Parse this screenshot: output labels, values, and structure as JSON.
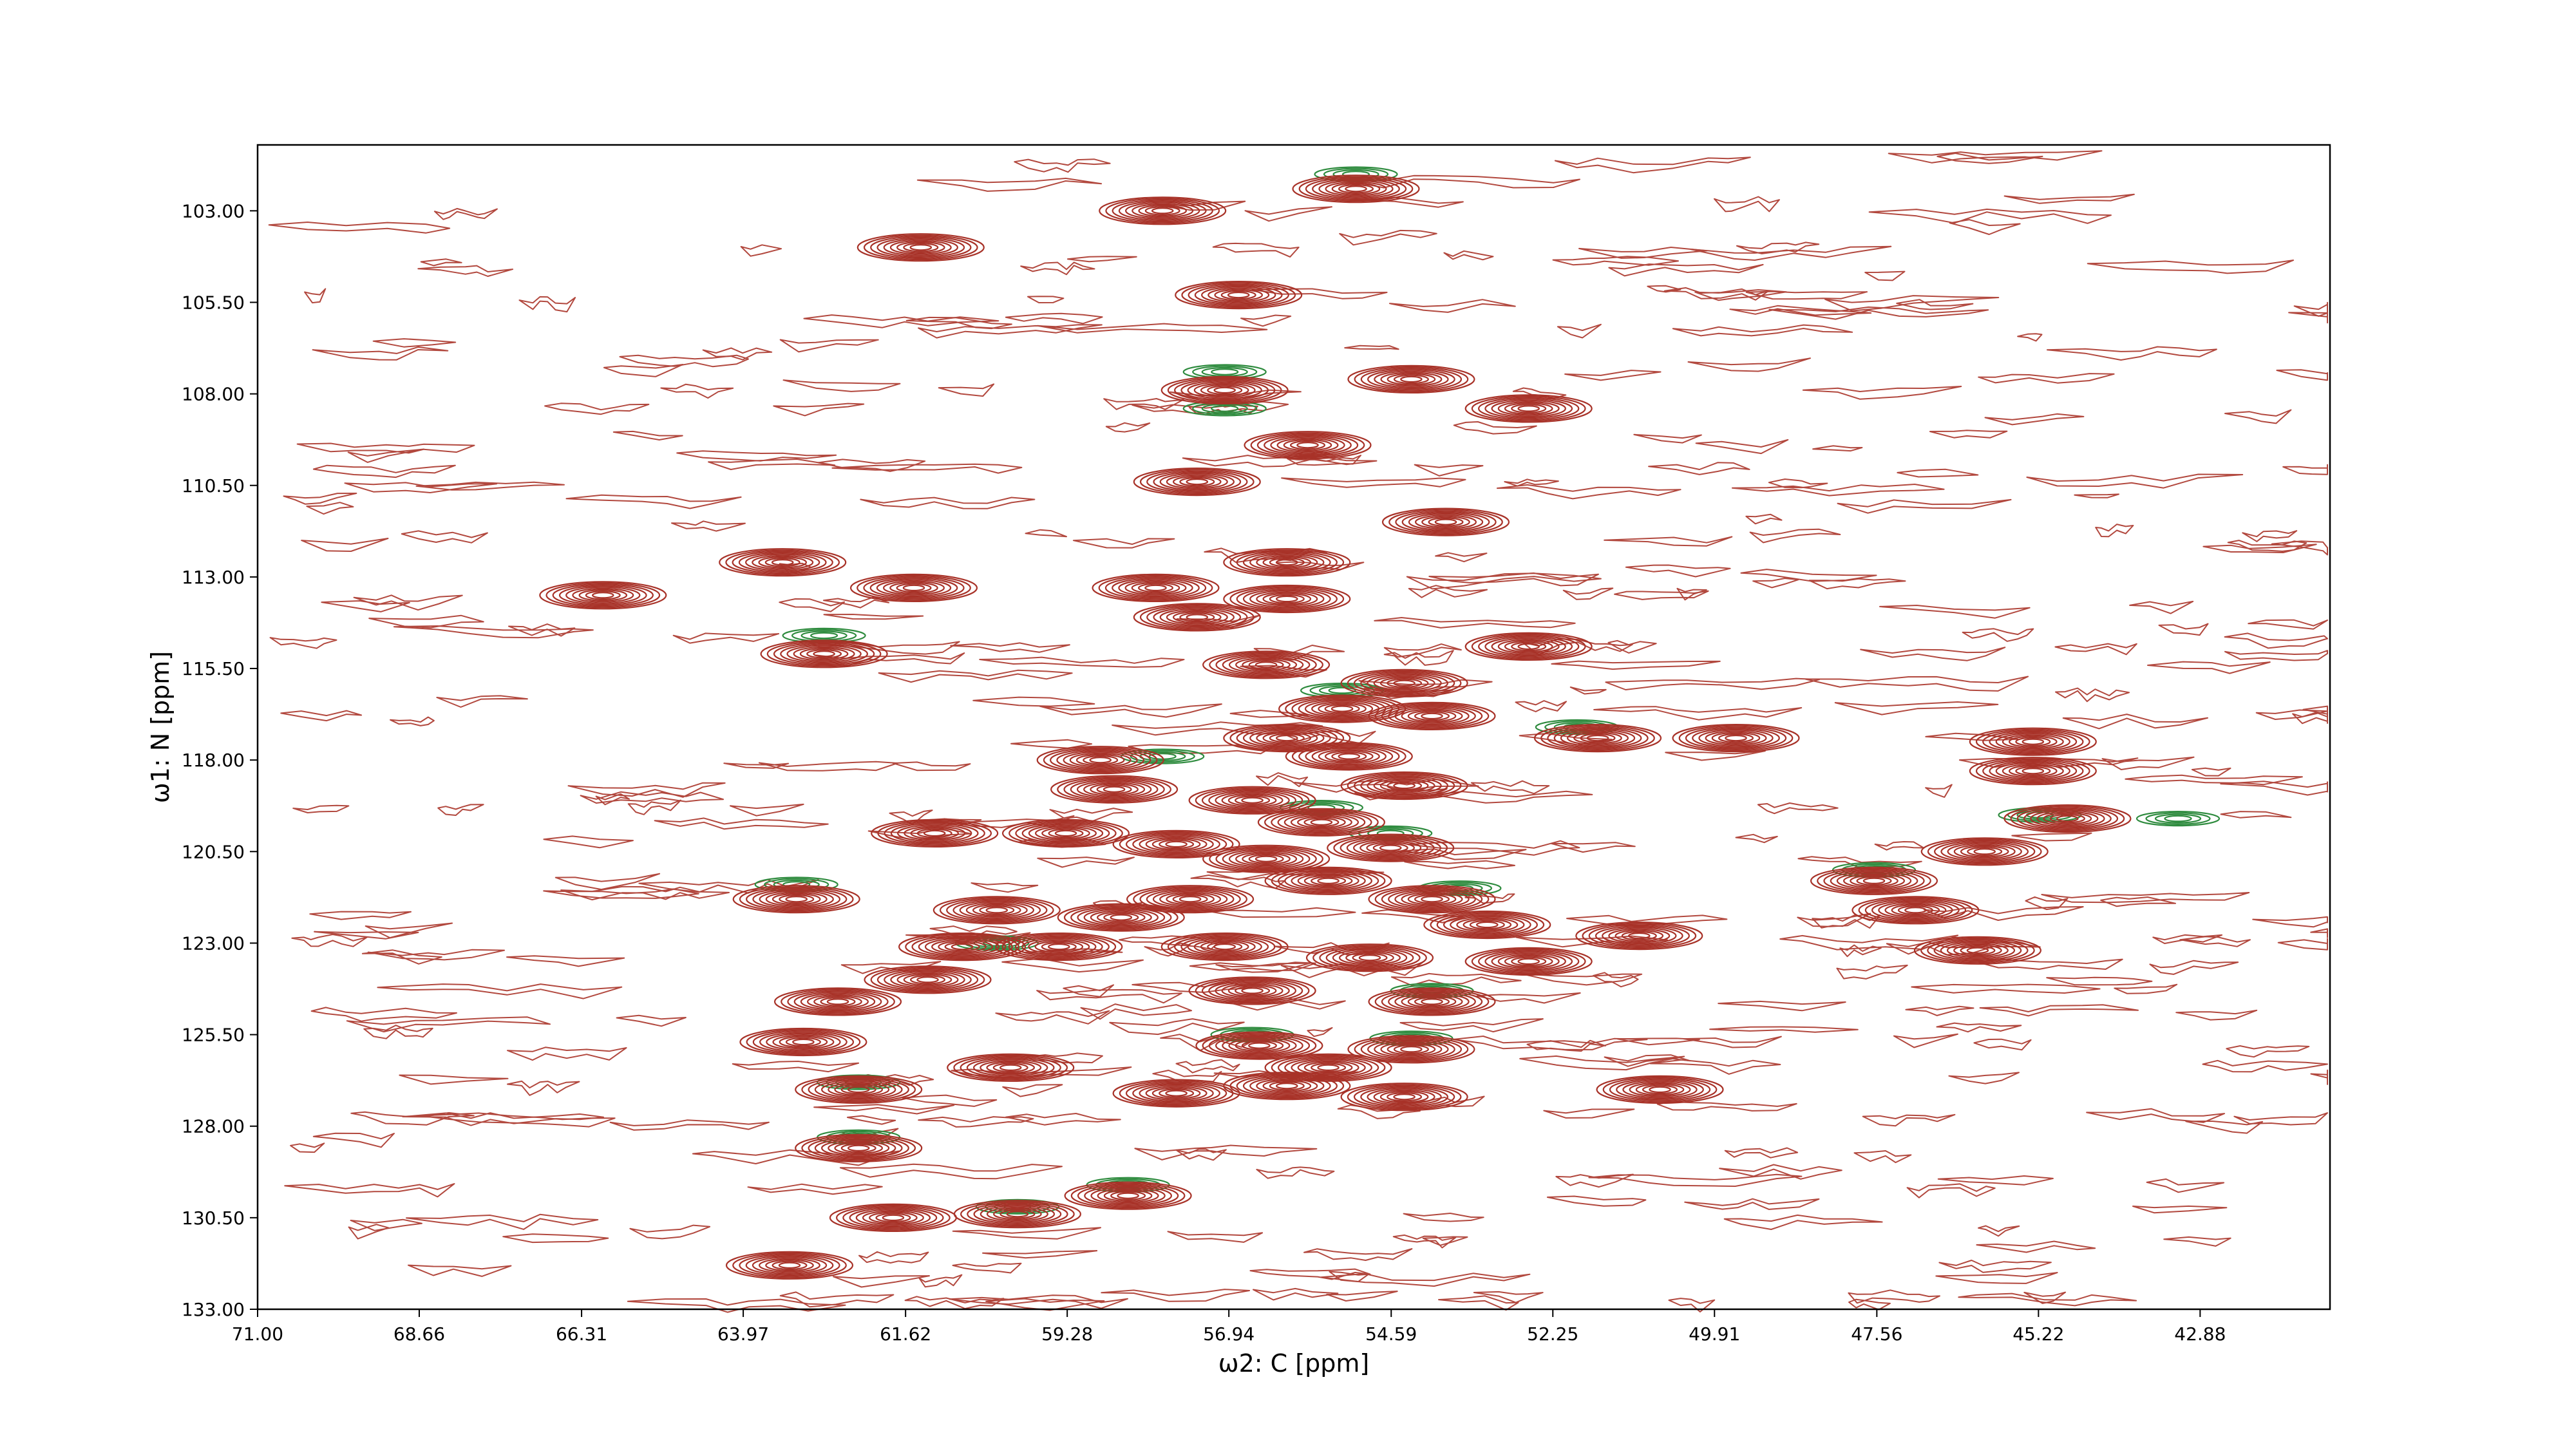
{
  "chart_data": {
    "type": "contour",
    "title": "",
    "xlabel": "ω2: C [ppm]",
    "ylabel": "ω1: N [ppm]",
    "xlim": [
      71.0,
      41.0
    ],
    "ylim": [
      133.0,
      101.2
    ],
    "x_ticks": [
      "71.00",
      "68.66",
      "66.31",
      "63.97",
      "61.62",
      "59.28",
      "56.94",
      "54.59",
      "52.25",
      "49.91",
      "47.56",
      "45.22",
      "42.88"
    ],
    "y_ticks": [
      "103.00",
      "105.50",
      "108.00",
      "110.50",
      "113.00",
      "115.50",
      "118.00",
      "120.50",
      "123.00",
      "125.50",
      "128.00",
      "130.50",
      "133.00"
    ],
    "grid": false,
    "colors": {
      "positive": "#a83228",
      "negative": "#2e8b3e",
      "noise": "#b2483e"
    },
    "series": [
      {
        "name": "",
        "sign": "positive",
        "peaks": [
          {
            "x": 55.1,
            "y": 102.4
          },
          {
            "x": 57.9,
            "y": 103.0
          },
          {
            "x": 61.4,
            "y": 104.0
          },
          {
            "x": 56.8,
            "y": 105.3
          },
          {
            "x": 54.3,
            "y": 107.6
          },
          {
            "x": 57.0,
            "y": 107.9
          },
          {
            "x": 52.6,
            "y": 108.4
          },
          {
            "x": 55.8,
            "y": 109.4
          },
          {
            "x": 57.4,
            "y": 110.4
          },
          {
            "x": 53.8,
            "y": 111.5
          },
          {
            "x": 63.4,
            "y": 112.6
          },
          {
            "x": 56.1,
            "y": 112.6
          },
          {
            "x": 61.5,
            "y": 113.3
          },
          {
            "x": 58.0,
            "y": 113.3
          },
          {
            "x": 56.1,
            "y": 113.6
          },
          {
            "x": 57.4,
            "y": 114.1
          },
          {
            "x": 66.0,
            "y": 113.5
          },
          {
            "x": 62.8,
            "y": 115.1
          },
          {
            "x": 52.6,
            "y": 114.9
          },
          {
            "x": 56.4,
            "y": 115.4
          },
          {
            "x": 54.4,
            "y": 115.9
          },
          {
            "x": 55.3,
            "y": 116.6
          },
          {
            "x": 54.0,
            "y": 116.8
          },
          {
            "x": 56.1,
            "y": 117.4
          },
          {
            "x": 51.6,
            "y": 117.4
          },
          {
            "x": 49.6,
            "y": 117.4
          },
          {
            "x": 45.3,
            "y": 117.5
          },
          {
            "x": 58.8,
            "y": 118.0
          },
          {
            "x": 55.2,
            "y": 117.9
          },
          {
            "x": 45.3,
            "y": 118.3
          },
          {
            "x": 58.6,
            "y": 118.8
          },
          {
            "x": 56.6,
            "y": 119.1
          },
          {
            "x": 54.4,
            "y": 118.7
          },
          {
            "x": 55.6,
            "y": 119.7
          },
          {
            "x": 44.8,
            "y": 119.6
          },
          {
            "x": 61.2,
            "y": 120.0
          },
          {
            "x": 59.3,
            "y": 120.0
          },
          {
            "x": 57.7,
            "y": 120.3
          },
          {
            "x": 54.6,
            "y": 120.4
          },
          {
            "x": 46.0,
            "y": 120.5
          },
          {
            "x": 56.4,
            "y": 120.7
          },
          {
            "x": 55.5,
            "y": 121.3
          },
          {
            "x": 47.6,
            "y": 121.3
          },
          {
            "x": 63.2,
            "y": 121.8
          },
          {
            "x": 57.5,
            "y": 121.8
          },
          {
            "x": 54.0,
            "y": 121.8
          },
          {
            "x": 60.3,
            "y": 122.1
          },
          {
            "x": 58.5,
            "y": 122.3
          },
          {
            "x": 47.0,
            "y": 122.1
          },
          {
            "x": 53.2,
            "y": 122.5
          },
          {
            "x": 51.0,
            "y": 122.8
          },
          {
            "x": 60.8,
            "y": 123.1
          },
          {
            "x": 59.4,
            "y": 123.1
          },
          {
            "x": 57.0,
            "y": 123.1
          },
          {
            "x": 46.1,
            "y": 123.2
          },
          {
            "x": 54.9,
            "y": 123.4
          },
          {
            "x": 52.6,
            "y": 123.5
          },
          {
            "x": 61.3,
            "y": 124.0
          },
          {
            "x": 56.6,
            "y": 124.3
          },
          {
            "x": 62.6,
            "y": 124.6
          },
          {
            "x": 54.0,
            "y": 124.6
          },
          {
            "x": 63.1,
            "y": 125.7
          },
          {
            "x": 56.5,
            "y": 125.8
          },
          {
            "x": 54.3,
            "y": 125.9
          },
          {
            "x": 60.1,
            "y": 126.4
          },
          {
            "x": 55.5,
            "y": 126.4
          },
          {
            "x": 62.3,
            "y": 127.0
          },
          {
            "x": 56.1,
            "y": 126.9
          },
          {
            "x": 57.7,
            "y": 127.1
          },
          {
            "x": 54.4,
            "y": 127.2
          },
          {
            "x": 50.7,
            "y": 127.0
          },
          {
            "x": 62.3,
            "y": 128.6
          },
          {
            "x": 58.4,
            "y": 129.9
          },
          {
            "x": 60.0,
            "y": 130.4
          },
          {
            "x": 61.8,
            "y": 130.5
          },
          {
            "x": 63.3,
            "y": 131.8
          }
        ]
      },
      {
        "name": "",
        "sign": "negative",
        "peaks": [
          {
            "x": 55.1,
            "y": 102.0
          },
          {
            "x": 57.0,
            "y": 107.4
          },
          {
            "x": 57.0,
            "y": 108.4
          },
          {
            "x": 62.8,
            "y": 114.6
          },
          {
            "x": 55.3,
            "y": 116.1
          },
          {
            "x": 51.9,
            "y": 117.1
          },
          {
            "x": 57.9,
            "y": 117.9
          },
          {
            "x": 55.6,
            "y": 119.3
          },
          {
            "x": 45.2,
            "y": 119.5
          },
          {
            "x": 43.2,
            "y": 119.6
          },
          {
            "x": 54.6,
            "y": 120.0
          },
          {
            "x": 47.6,
            "y": 121.0
          },
          {
            "x": 63.2,
            "y": 121.4
          },
          {
            "x": 53.6,
            "y": 121.5
          },
          {
            "x": 60.3,
            "y": 123.0
          },
          {
            "x": 54.0,
            "y": 124.3
          },
          {
            "x": 56.6,
            "y": 125.5
          },
          {
            "x": 54.3,
            "y": 125.6
          },
          {
            "x": 62.3,
            "y": 126.8
          },
          {
            "x": 62.3,
            "y": 128.3
          },
          {
            "x": 58.4,
            "y": 129.6
          },
          {
            "x": 60.0,
            "y": 130.2
          }
        ]
      }
    ]
  }
}
